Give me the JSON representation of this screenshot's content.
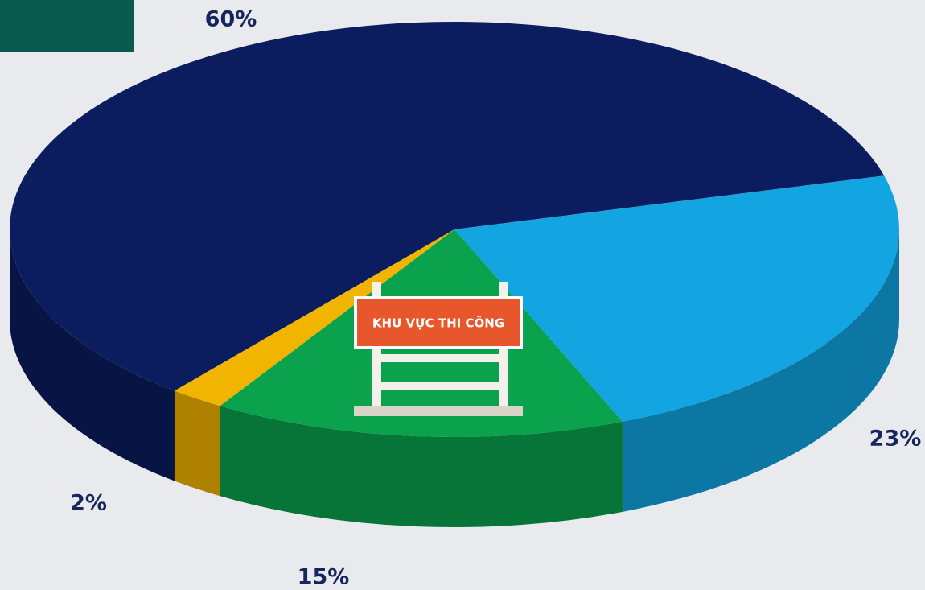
{
  "chart_data": {
    "type": "pie",
    "values": [
      60,
      23,
      15,
      2
    ],
    "value_labels": [
      "60%",
      "23%",
      "15%",
      "2%"
    ],
    "colors": [
      "#0b1d5e",
      "#12a5e2",
      "#0aa24c",
      "#f1b500"
    ],
    "annotation": "KHU VỰC THI CÔNG"
  }
}
